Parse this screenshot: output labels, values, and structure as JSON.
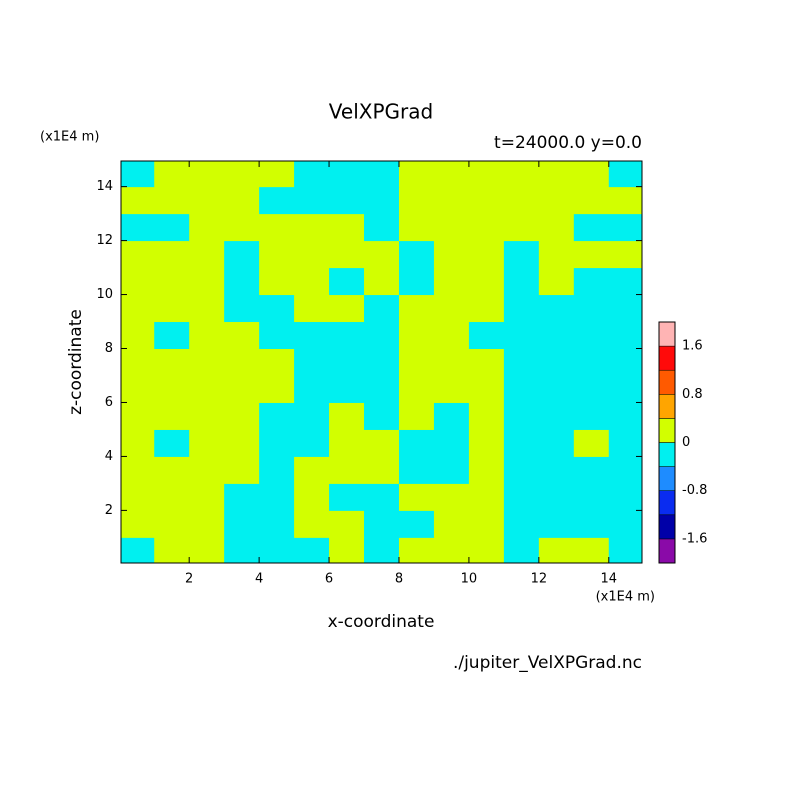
{
  "chart_data": {
    "type": "contour",
    "title": "VelXPGrad",
    "subtitle": "t=24000.0 y=0.0",
    "x_unit": "(x1E4 m)",
    "y_unit": "(x1E4 m)",
    "xlabel": "x-coordinate",
    "ylabel": "z-coordinate",
    "source": "./jupiter_VelXPGrad.nc",
    "xlim": [
      0.05,
      14.95
    ],
    "ylim": [
      0.05,
      14.95
    ],
    "xticks": [
      2,
      4,
      6,
      8,
      10,
      12,
      14
    ],
    "yticks": [
      2,
      4,
      6,
      8,
      10,
      12,
      14
    ],
    "x": [
      0.5,
      1.5,
      2.5,
      3.5,
      4.5,
      5.5,
      6.5,
      7.5,
      8.5,
      9.5,
      10.5,
      11.5,
      12.5,
      13.5,
      14.5
    ],
    "y": [
      0.5,
      1.5,
      2.5,
      3.5,
      4.5,
      5.5,
      6.5,
      7.5,
      8.5,
      9.5,
      10.5,
      11.5,
      12.5,
      13.5,
      14.5
    ],
    "z": [
      [
        -0.2,
        0.2,
        0.2,
        -0.2,
        -0.2,
        -0.2,
        0.2,
        -0.2,
        0.2,
        0.2,
        0.2,
        -0.2,
        0.2,
        0.2,
        -0.2
      ],
      [
        0.2,
        0.2,
        0.2,
        -0.2,
        -0.2,
        0.2,
        0.2,
        -0.2,
        -0.2,
        0.2,
        0.2,
        -0.2,
        -0.2,
        -0.2,
        -0.2
      ],
      [
        0.2,
        0.2,
        0.2,
        -0.2,
        -0.2,
        0.2,
        -0.2,
        -0.2,
        0.2,
        0.2,
        0.2,
        -0.2,
        -0.2,
        -0.2,
        -0.2
      ],
      [
        0.2,
        0.2,
        0.2,
        0.2,
        -0.2,
        0.2,
        0.2,
        0.2,
        -0.2,
        -0.2,
        0.2,
        -0.2,
        -0.2,
        -0.2,
        -0.2
      ],
      [
        0.2,
        -0.2,
        0.2,
        0.2,
        -0.2,
        -0.2,
        0.2,
        0.2,
        -0.2,
        -0.2,
        0.2,
        -0.2,
        -0.2,
        0.2,
        -0.2
      ],
      [
        0.2,
        0.2,
        0.2,
        0.2,
        -0.2,
        -0.2,
        0.2,
        -0.2,
        0.2,
        -0.2,
        0.2,
        -0.2,
        -0.2,
        -0.2,
        -0.2
      ],
      [
        0.2,
        0.2,
        0.2,
        0.2,
        0.2,
        -0.2,
        -0.2,
        -0.2,
        0.2,
        0.2,
        0.2,
        -0.2,
        -0.2,
        -0.2,
        -0.2
      ],
      [
        0.2,
        0.2,
        0.2,
        0.2,
        0.2,
        -0.2,
        -0.2,
        -0.2,
        0.2,
        0.2,
        0.2,
        -0.2,
        -0.2,
        -0.2,
        -0.2
      ],
      [
        0.2,
        -0.2,
        0.2,
        0.2,
        -0.2,
        -0.2,
        -0.2,
        -0.2,
        0.2,
        0.2,
        -0.2,
        -0.2,
        -0.2,
        -0.2,
        -0.2
      ],
      [
        0.2,
        0.2,
        0.2,
        -0.2,
        -0.2,
        0.2,
        0.2,
        -0.2,
        0.2,
        0.2,
        0.2,
        -0.2,
        -0.2,
        -0.2,
        -0.2
      ],
      [
        0.2,
        0.2,
        0.2,
        -0.2,
        0.2,
        0.2,
        -0.2,
        0.2,
        -0.2,
        0.2,
        0.2,
        -0.2,
        0.2,
        -0.2,
        -0.2
      ],
      [
        0.2,
        0.2,
        0.2,
        -0.2,
        0.2,
        0.2,
        0.2,
        0.2,
        -0.2,
        0.2,
        0.2,
        -0.2,
        0.2,
        0.2,
        0.2
      ],
      [
        -0.2,
        -0.2,
        0.2,
        0.2,
        0.2,
        0.2,
        0.2,
        -0.2,
        0.2,
        0.2,
        0.2,
        0.2,
        0.2,
        -0.2,
        -0.2
      ],
      [
        0.2,
        0.2,
        0.2,
        0.2,
        -0.2,
        -0.2,
        -0.2,
        -0.2,
        0.2,
        0.2,
        0.2,
        0.2,
        0.2,
        0.2,
        0.2
      ],
      [
        -0.2,
        0.2,
        0.2,
        0.2,
        0.2,
        -0.2,
        -0.2,
        -0.2,
        0.2,
        0.2,
        0.2,
        0.2,
        0.2,
        0.2,
        -0.2
      ]
    ],
    "levels": [
      -2.0,
      -1.6,
      -1.2,
      -0.8,
      -0.4,
      0,
      0.4,
      0.8,
      1.2,
      1.6,
      2.0
    ],
    "colors": [
      "#8a0aa8",
      "#0000a8",
      "#0a2cf0",
      "#1e8cff",
      "#00f0f0",
      "#d2ff00",
      "#ffa500",
      "#ff5a00",
      "#ff0a0a",
      "#ffb4b4"
    ],
    "colorbar_ticks": [
      1.6,
      0.8,
      0,
      -0.8,
      -1.6
    ]
  }
}
